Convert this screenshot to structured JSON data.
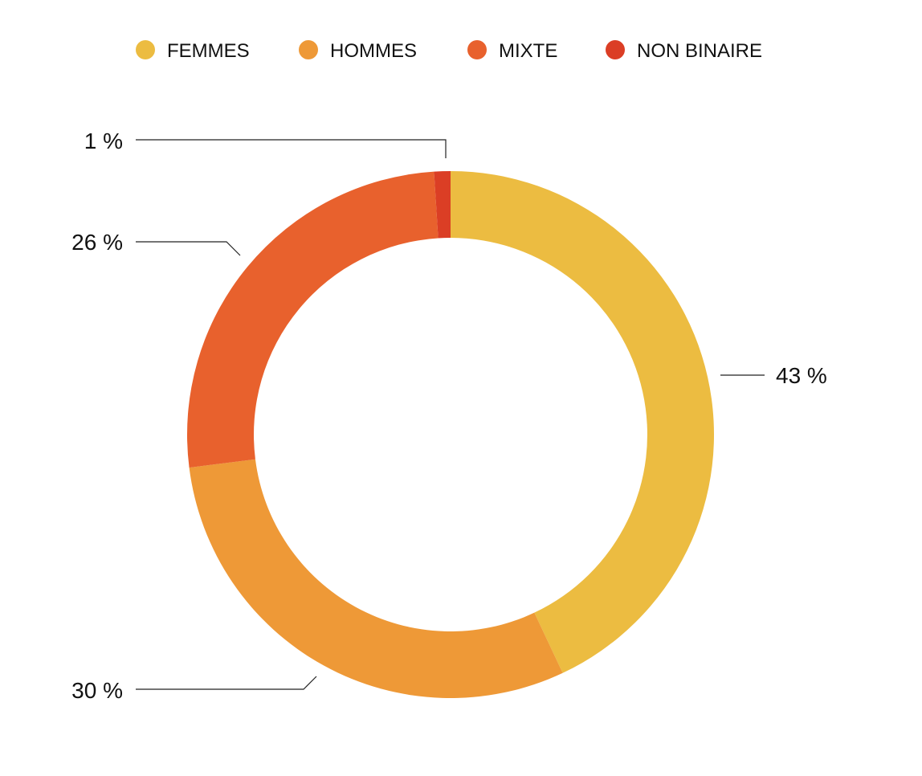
{
  "chart_data": {
    "type": "pie",
    "variant": "donut",
    "categories": [
      "FEMMES",
      "HOMMES",
      "MIXTE",
      "NON BINAIRE"
    ],
    "values": [
      43,
      30,
      26,
      1
    ],
    "labels": [
      "43 %",
      "30 %",
      "26 %",
      "1 %"
    ],
    "colors": [
      "#ECBC41",
      "#EE9937",
      "#E8612D",
      "#DB3E25"
    ],
    "legend_position": "top"
  }
}
